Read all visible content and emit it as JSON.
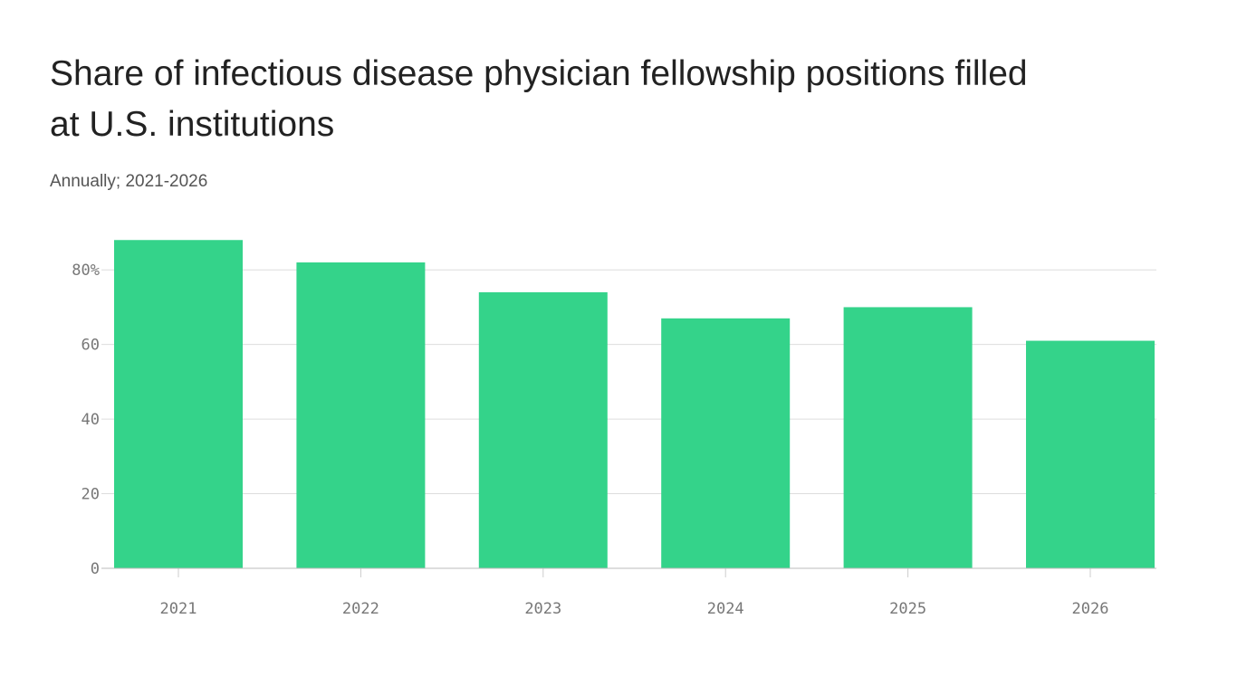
{
  "chart_data": {
    "type": "bar",
    "title_lines": [
      "Share of infectious disease physician fellowship positions filled",
      "at U.S. institutions"
    ],
    "subtitle": "Annually; 2021-2026",
    "categories": [
      "2021",
      "2022",
      "2023",
      "2024",
      "2025",
      "2026"
    ],
    "values": [
      88,
      82,
      74,
      67,
      70,
      61
    ],
    "color": "#34d38a",
    "ylim": [
      0,
      90
    ],
    "yticks": [
      0,
      20,
      40,
      60,
      {
        "value": 80,
        "label": "80%"
      }
    ],
    "grid": true
  }
}
